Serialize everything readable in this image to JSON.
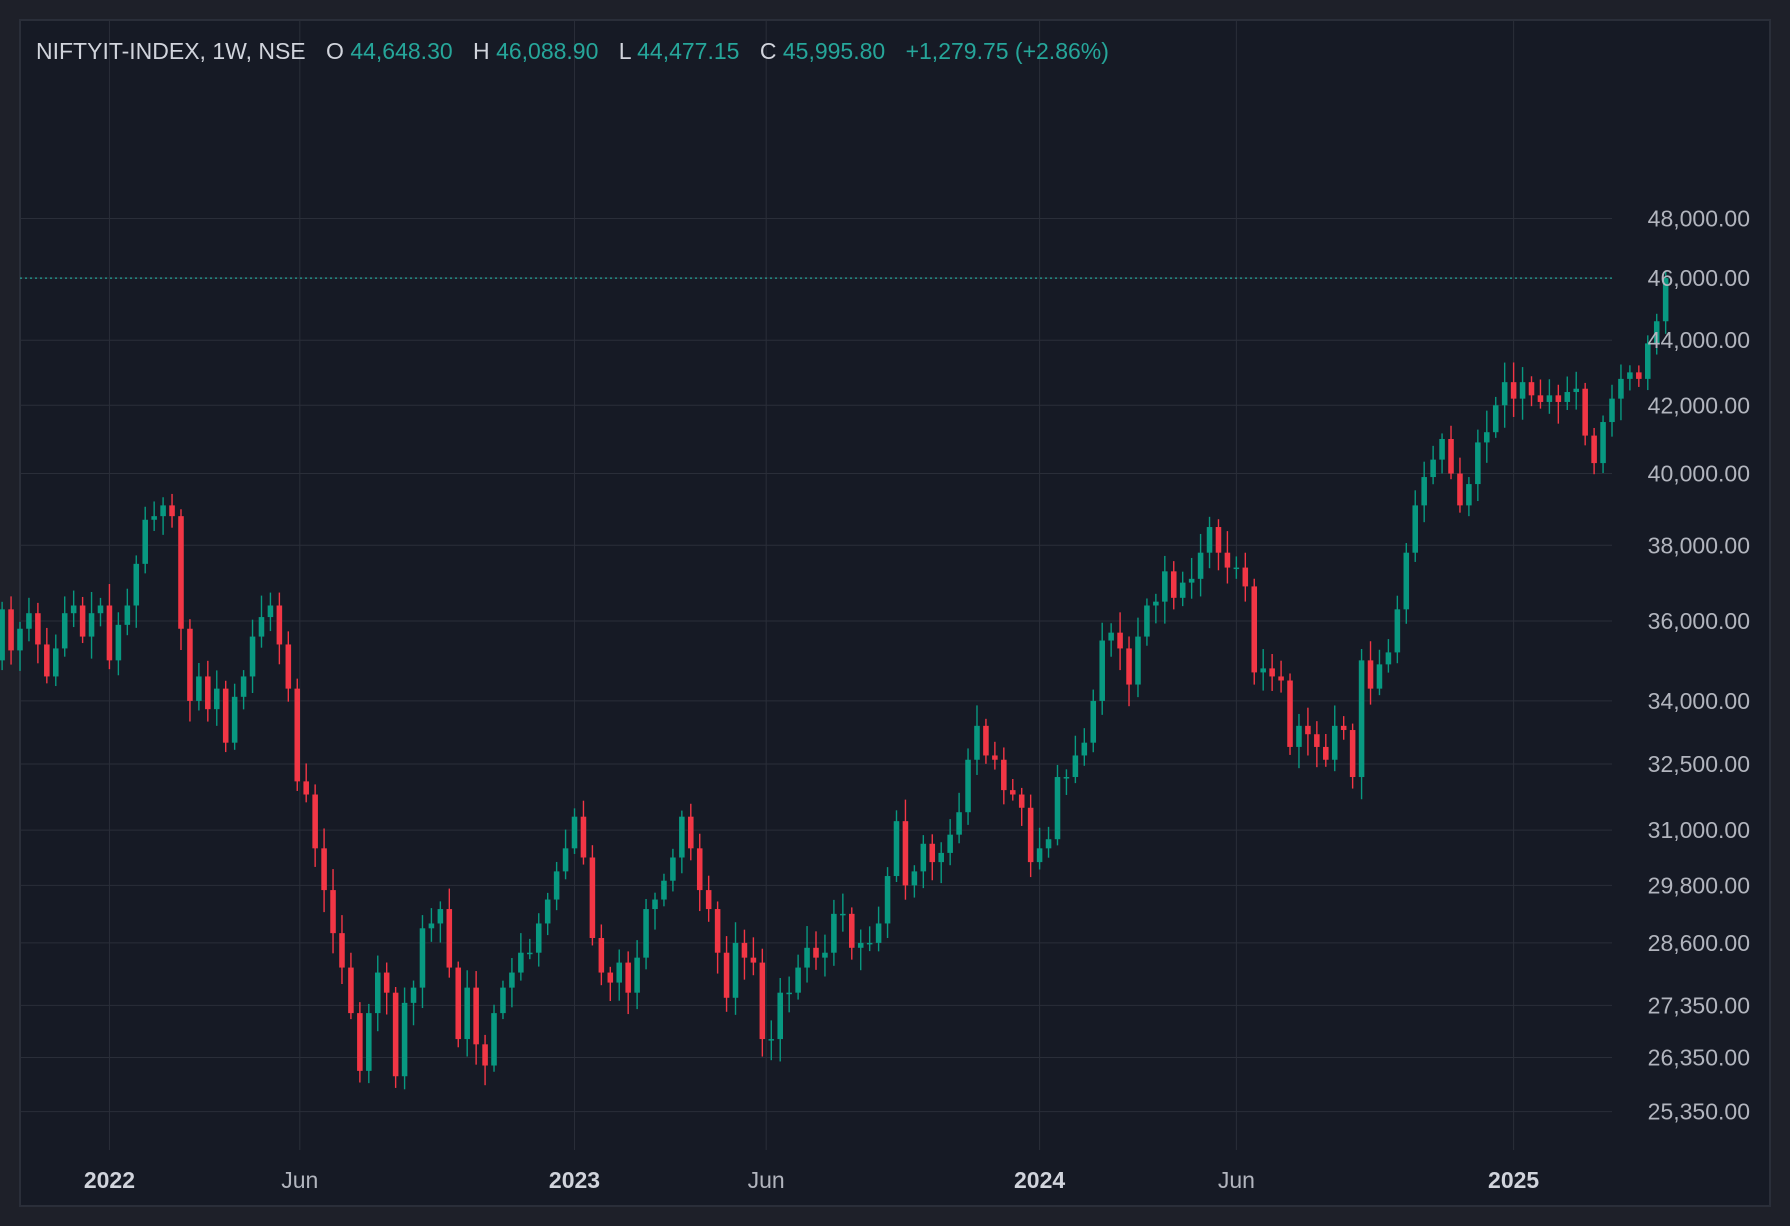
{
  "legend": {
    "symbol": "NIFTYIT-INDEX, 1W, NSE",
    "o_label": "O",
    "o_value": "44,648.30",
    "h_label": "H",
    "h_value": "46,088.90",
    "l_label": "L",
    "l_value": "44,477.15",
    "c_label": "C",
    "c_value": "45,995.80",
    "change": "+1,279.75 (+2.86%)"
  },
  "last_price": 45995.8,
  "colors": {
    "background": "#1e2029",
    "plot_background": "#161a25",
    "grid": "#2a2e39",
    "up": "#089981",
    "down": "#f23645",
    "legend_symbol": "#d1d4dc",
    "legend_value": "#26a69a",
    "axis_text": "#b2b5be"
  },
  "chart_data": {
    "type": "candlestick",
    "interval": "1W",
    "y_scale": "log",
    "ylim": [
      24400,
      49500
    ],
    "grid": true,
    "y_ticks": [
      {
        "value": 48000,
        "label": "48,000.00"
      },
      {
        "value": 46000,
        "label": "46,000.00"
      },
      {
        "value": 44000,
        "label": "44,000.00"
      },
      {
        "value": 42000,
        "label": "42,000.00"
      },
      {
        "value": 40000,
        "label": "40,000.00"
      },
      {
        "value": 38000,
        "label": "38,000.00"
      },
      {
        "value": 36000,
        "label": "36,000.00"
      },
      {
        "value": 34000,
        "label": "34,000.00"
      },
      {
        "value": 32500,
        "label": "32,500.00"
      },
      {
        "value": 31000,
        "label": "31,000.00"
      },
      {
        "value": 29800,
        "label": "29,800.00"
      },
      {
        "value": 28600,
        "label": "28,600.00"
      },
      {
        "value": 27350,
        "label": "27,350.00"
      },
      {
        "value": 26350,
        "label": "26,350.00"
      },
      {
        "value": 25350,
        "label": "25,350.00"
      }
    ],
    "x_ticks": [
      {
        "label": "2022",
        "date": "2022-01-03",
        "bold": true
      },
      {
        "label": "Jun",
        "date": "2022-06-01",
        "bold": false
      },
      {
        "label": "2023",
        "date": "2023-01-02",
        "bold": true
      },
      {
        "label": "Jun",
        "date": "2023-06-01",
        "bold": false
      },
      {
        "label": "2024",
        "date": "2024-01-01",
        "bold": true
      },
      {
        "label": "Jun",
        "date": "2024-06-03",
        "bold": false
      },
      {
        "label": "2025",
        "date": "2025-01-06",
        "bold": true
      }
    ],
    "x_start": "2021-10-25",
    "x_end": "2025-03-24",
    "closes": [
      35000,
      36300,
      35250,
      35800,
      36200,
      35400,
      34600,
      35300,
      36200,
      36400,
      35600,
      36200,
      36400,
      35000,
      35900,
      36400,
      37500,
      38700,
      38800,
      39100,
      38800,
      35800,
      34000,
      34600,
      33800,
      34300,
      33000,
      34100,
      34600,
      35600,
      36100,
      36400,
      35400,
      34300,
      32100,
      31800,
      30600,
      29700,
      28800,
      28100,
      27200,
      26100,
      27200,
      28000,
      27600,
      26000,
      27400,
      27700,
      28900,
      29000,
      29300,
      28100,
      26700,
      27700,
      26600,
      26200,
      27200,
      27700,
      28000,
      28400,
      28400,
      29000,
      29500,
      30100,
      30600,
      31300,
      30400,
      28700,
      28000,
      27800,
      28200,
      27600,
      28300,
      29300,
      29500,
      29900,
      30400,
      31300,
      30600,
      29700,
      29300,
      28400,
      27500,
      28600,
      28300,
      28200,
      26700,
      26700,
      27600,
      27600,
      28100,
      28500,
      28300,
      28400,
      29200,
      29200,
      28500,
      28600,
      28600,
      29000,
      30000,
      31200,
      29800,
      30100,
      30700,
      30300,
      30500,
      30900,
      31400,
      32600,
      33400,
      32700,
      32600,
      31900,
      31800,
      31500,
      30300,
      30600,
      30800,
      32200,
      32200,
      32700,
      33000,
      34000,
      35500,
      35700,
      35300,
      34400,
      35600,
      36400,
      36500,
      37300,
      36600,
      37000,
      37100,
      37800,
      38500,
      37800,
      37400,
      37400,
      36900,
      34700,
      34800,
      34600,
      34500,
      32900,
      33400,
      33200,
      32900,
      32600,
      33400,
      33300,
      32200,
      35000,
      34300,
      34900,
      35200,
      36300,
      37800,
      39100,
      39900,
      40400,
      41000,
      40000,
      39100,
      39700,
      40900,
      41200,
      42000,
      42700,
      42200,
      42700,
      42300,
      42100,
      42300,
      42100,
      42400,
      42500,
      41100,
      40300,
      41500,
      42200,
      42800,
      43000,
      42800,
      43900,
      44600,
      45996
    ]
  }
}
